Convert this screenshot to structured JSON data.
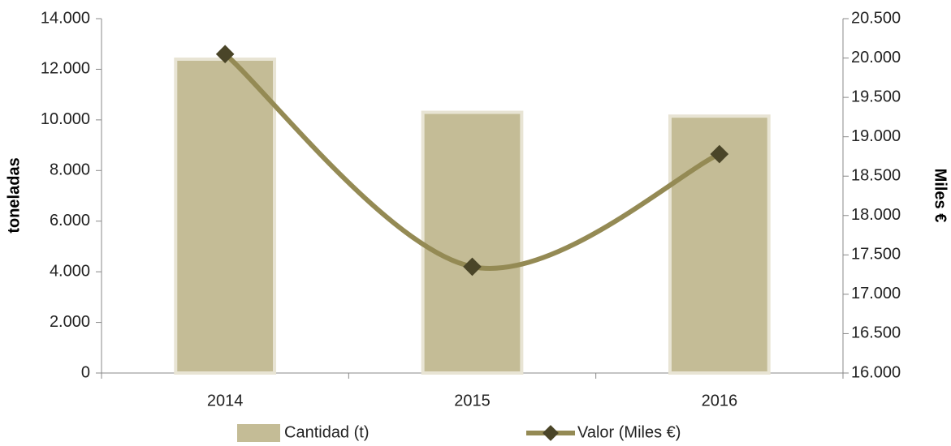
{
  "chart_data": {
    "type": "bar",
    "categories": [
      "2014",
      "2015",
      "2016"
    ],
    "y_label": "toneladas",
    "y2_label": "Miles €",
    "ylim": [
      0,
      14000
    ],
    "yticks": [
      0,
      {
        "value": 2000,
        "label": "2.000"
      },
      {
        "value": 4000,
        "label": "4.000"
      },
      {
        "value": 6000,
        "label": "6.000"
      },
      {
        "value": 8000,
        "label": "8.000"
      },
      {
        "value": 10000,
        "label": "10.000"
      },
      {
        "value": 12000,
        "label": "12.000"
      },
      {
        "value": 14000,
        "label": "14.000"
      }
    ],
    "y2lim": [
      16000,
      20500
    ],
    "y2ticks": [
      {
        "value": 16000,
        "label": "16.000"
      },
      {
        "value": 16500,
        "label": "16.500"
      },
      {
        "value": 17000,
        "label": "17.000"
      },
      {
        "value": 17500,
        "label": "17.500"
      },
      {
        "value": 18000,
        "label": "18.000"
      },
      {
        "value": 18500,
        "label": "18.500"
      },
      {
        "value": 19000,
        "label": "19.000"
      },
      {
        "value": 19500,
        "label": "19.500"
      },
      {
        "value": 20000,
        "label": "20.000"
      },
      {
        "value": 20500,
        "label": "20.500"
      }
    ],
    "series": [
      {
        "name": "Cantidad (t)",
        "type": "bar",
        "color": "#c4bc96",
        "values": [
          12400,
          10300,
          10150
        ]
      },
      {
        "name": "Valor (Miles €)",
        "type": "line",
        "axis": "y2",
        "color": "#948a54",
        "marker_color": "#4a4528",
        "values": [
          20050,
          17350,
          18780
        ]
      }
    ],
    "legend": "bottom"
  }
}
